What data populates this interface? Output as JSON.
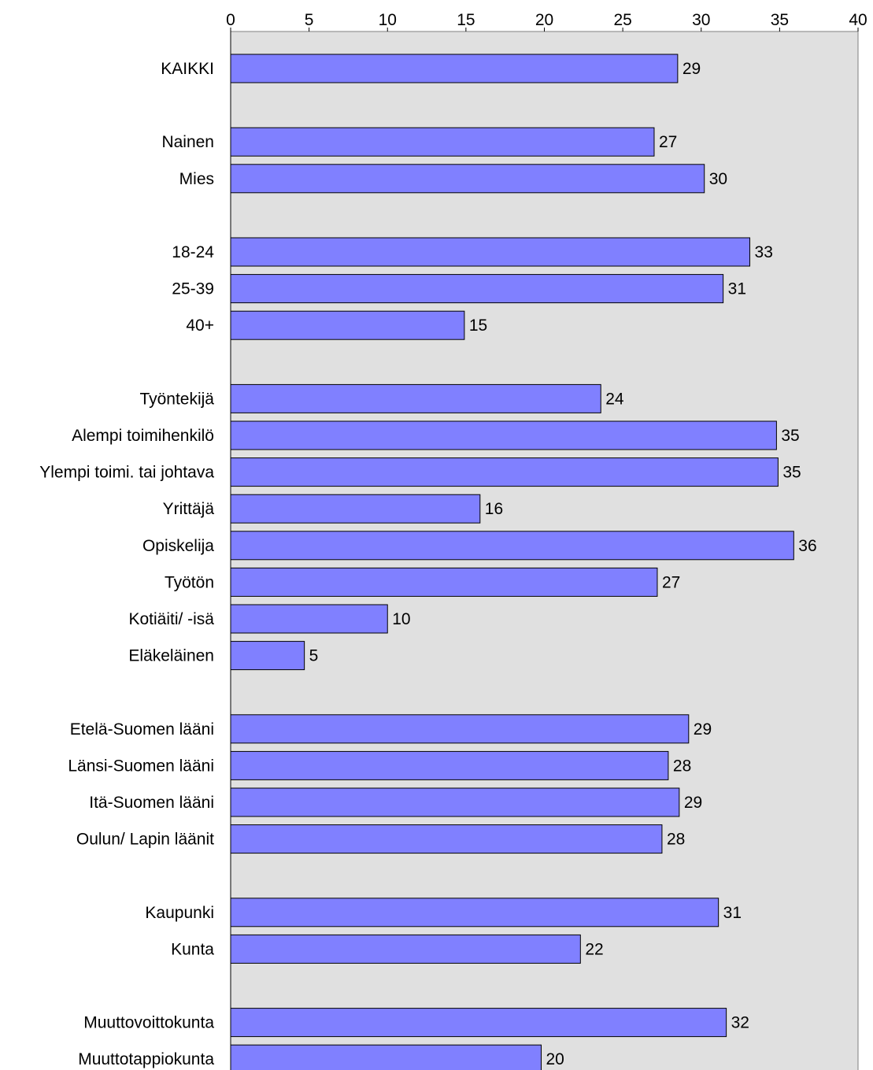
{
  "chart_data": {
    "type": "bar",
    "orientation": "horizontal",
    "title": "",
    "xlabel": "",
    "ylabel": "",
    "xlim": [
      0,
      40
    ],
    "x_ticks": [
      "0",
      "5",
      "10",
      "15",
      "20",
      "25",
      "30",
      "35",
      "40"
    ],
    "x_axis_position": "top",
    "grid": false,
    "plot_background": "#e0e0e0",
    "bar_color": "#8080ff",
    "bar_edge_color": "#000000",
    "categories": [
      "KAIKKI",
      "",
      "Nainen",
      "Mies",
      "",
      "18-24",
      "25-39",
      "40+",
      "",
      "Työntekijä",
      "Alempi toimihenkilö",
      "Ylempi toimi. tai johtava",
      "Yrittäjä",
      "Opiskelija",
      "Työtön",
      "Kotiäiti/ -isä",
      "Eläkeläinen",
      "",
      "Etelä-Suomen lääni",
      "Länsi-Suomen lääni",
      "Itä-Suomen lääni",
      "Oulun/ Lapin läänit",
      "",
      "Kaupunki",
      "Kunta",
      "",
      "Muuttovoittokunta",
      "Muuttotappiokunta"
    ],
    "values": [
      28.5,
      null,
      27,
      30.2,
      null,
      33.1,
      31.4,
      14.9,
      null,
      23.6,
      34.8,
      34.9,
      15.9,
      35.9,
      27.2,
      10,
      4.7,
      null,
      29.2,
      27.9,
      28.6,
      27.5,
      null,
      31.1,
      22.3,
      null,
      31.6,
      19.8
    ],
    "data_labels": [
      "29",
      "",
      "27",
      "30",
      "",
      "33",
      "31",
      "15",
      "",
      "24",
      "35",
      "35",
      "16",
      "36",
      "27",
      "10",
      "5",
      "",
      "29",
      "28",
      "29",
      "28",
      "",
      "31",
      "22",
      "",
      "32",
      "20"
    ]
  }
}
